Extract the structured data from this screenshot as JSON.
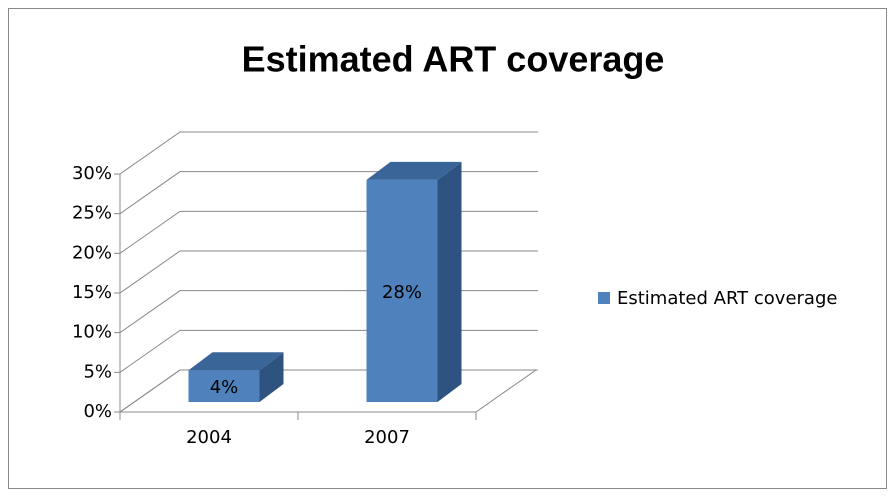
{
  "chart_data": {
    "type": "bar3d",
    "title": "Estimated ART coverage",
    "categories": [
      "2004",
      "2007"
    ],
    "series": [
      {
        "name": "Estimated ART coverage",
        "color": "#4f81bd",
        "values": [
          4,
          28
        ],
        "value_labels": [
          "4%",
          "28%"
        ]
      }
    ],
    "ylim": [
      0,
      30
    ],
    "yticks": [
      {
        "value": 0,
        "label": "0%"
      },
      {
        "value": 5,
        "label": "5%"
      },
      {
        "value": 10,
        "label": "10%"
      },
      {
        "value": 15,
        "label": "15%"
      },
      {
        "value": 20,
        "label": "20%"
      },
      {
        "value": 25,
        "label": "25%"
      },
      {
        "value": 30,
        "label": "30%"
      }
    ],
    "grid": true,
    "legend": "right"
  }
}
